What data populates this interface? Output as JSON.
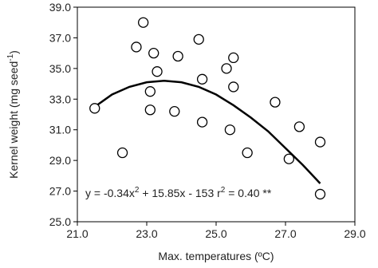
{
  "chart_data": {
    "type": "scatter",
    "x_label": "Max. temperatures (ºC)",
    "y_label_parts": [
      "Kernel weight (mg seed",
      "-1",
      ")"
    ],
    "annotation_parts": [
      "y = -0.34x",
      "2",
      " + 15.85x - 153 r",
      "2",
      " = 0.40 **"
    ],
    "xlim": [
      21,
      29
    ],
    "ylim": [
      25,
      39
    ],
    "xticks": [
      {
        "value": 21,
        "label": "21.0"
      },
      {
        "value": 23,
        "label": "23.0"
      },
      {
        "value": 25,
        "label": "25.0"
      },
      {
        "value": 27,
        "label": "27.0"
      },
      {
        "value": 29,
        "label": "29.0"
      }
    ],
    "yticks": [
      {
        "value": 25,
        "label": "25.0"
      },
      {
        "value": 27,
        "label": "27.0"
      },
      {
        "value": 29,
        "label": "29.0"
      },
      {
        "value": 31,
        "label": "31.0"
      },
      {
        "value": 33,
        "label": "33.0"
      },
      {
        "value": 35,
        "label": "35.0"
      },
      {
        "value": 37,
        "label": "37.0"
      },
      {
        "value": 39,
        "label": "39.0"
      }
    ],
    "points": {
      "color": "#000000",
      "x": [
        21.5,
        22.3,
        22.7,
        22.9,
        23.1,
        23.1,
        23.2,
        23.3,
        23.8,
        23.9,
        24.5,
        24.6,
        24.6,
        25.3,
        25.4,
        25.5,
        25.5,
        25.9,
        26.7,
        27.1,
        27.4,
        28.0,
        28.0
      ],
      "values": [
        32.4,
        29.5,
        36.4,
        38.0,
        33.5,
        32.3,
        36.0,
        34.8,
        32.2,
        35.8,
        36.9,
        34.3,
        31.5,
        35.0,
        31.0,
        35.7,
        33.8,
        29.5,
        32.8,
        29.1,
        31.2,
        30.2,
        26.8
      ]
    },
    "fit": {
      "color": "#000000",
      "x": [
        21.5,
        22,
        22.5,
        23,
        23.5,
        24,
        24.5,
        25,
        25.5,
        26,
        26.5,
        27,
        27.5,
        28
      ],
      "values": [
        32.5,
        33.3,
        33.8,
        34.1,
        34.2,
        34.1,
        33.8,
        33.3,
        32.6,
        31.8,
        30.9,
        29.8,
        28.7,
        27.5
      ]
    }
  }
}
